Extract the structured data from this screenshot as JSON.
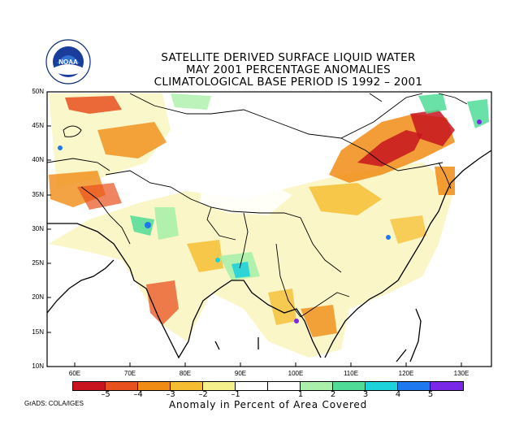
{
  "title": {
    "line1": "SATELLITE DERIVED SURFACE LIQUID WATER",
    "line2": "MAY 2001 PERCENTAGE ANOMALIES",
    "line3": "CLIMATOLOGICAL BASE PERIOD IS 1992 – 2001"
  },
  "logo": {
    "text": "NOAA",
    "icon": "noaa-logo-icon"
  },
  "lat_labels": [
    "50N",
    "45N",
    "40N",
    "35N",
    "30N",
    "25N",
    "20N",
    "15N",
    "10N"
  ],
  "lon_labels": [
    "60E",
    "70E",
    "80E",
    "90E",
    "100E",
    "110E",
    "120E",
    "130E"
  ],
  "colorbar": {
    "colors": [
      "#c8141e",
      "#e8501e",
      "#f08c14",
      "#f5be32",
      "#f5f08c",
      "#ffffff",
      "#ffffff",
      "#aaf0aa",
      "#50dc96",
      "#1ed2dc",
      "#1e78f0",
      "#7828e6"
    ],
    "labels": [
      "–5",
      "–4",
      "–3",
      "–2",
      "–1",
      "1",
      "2",
      "3",
      "4",
      "5"
    ],
    "title": "Anomaly in Percent of Area Covered"
  },
  "credit": "GrADS: COLA/IGES"
}
